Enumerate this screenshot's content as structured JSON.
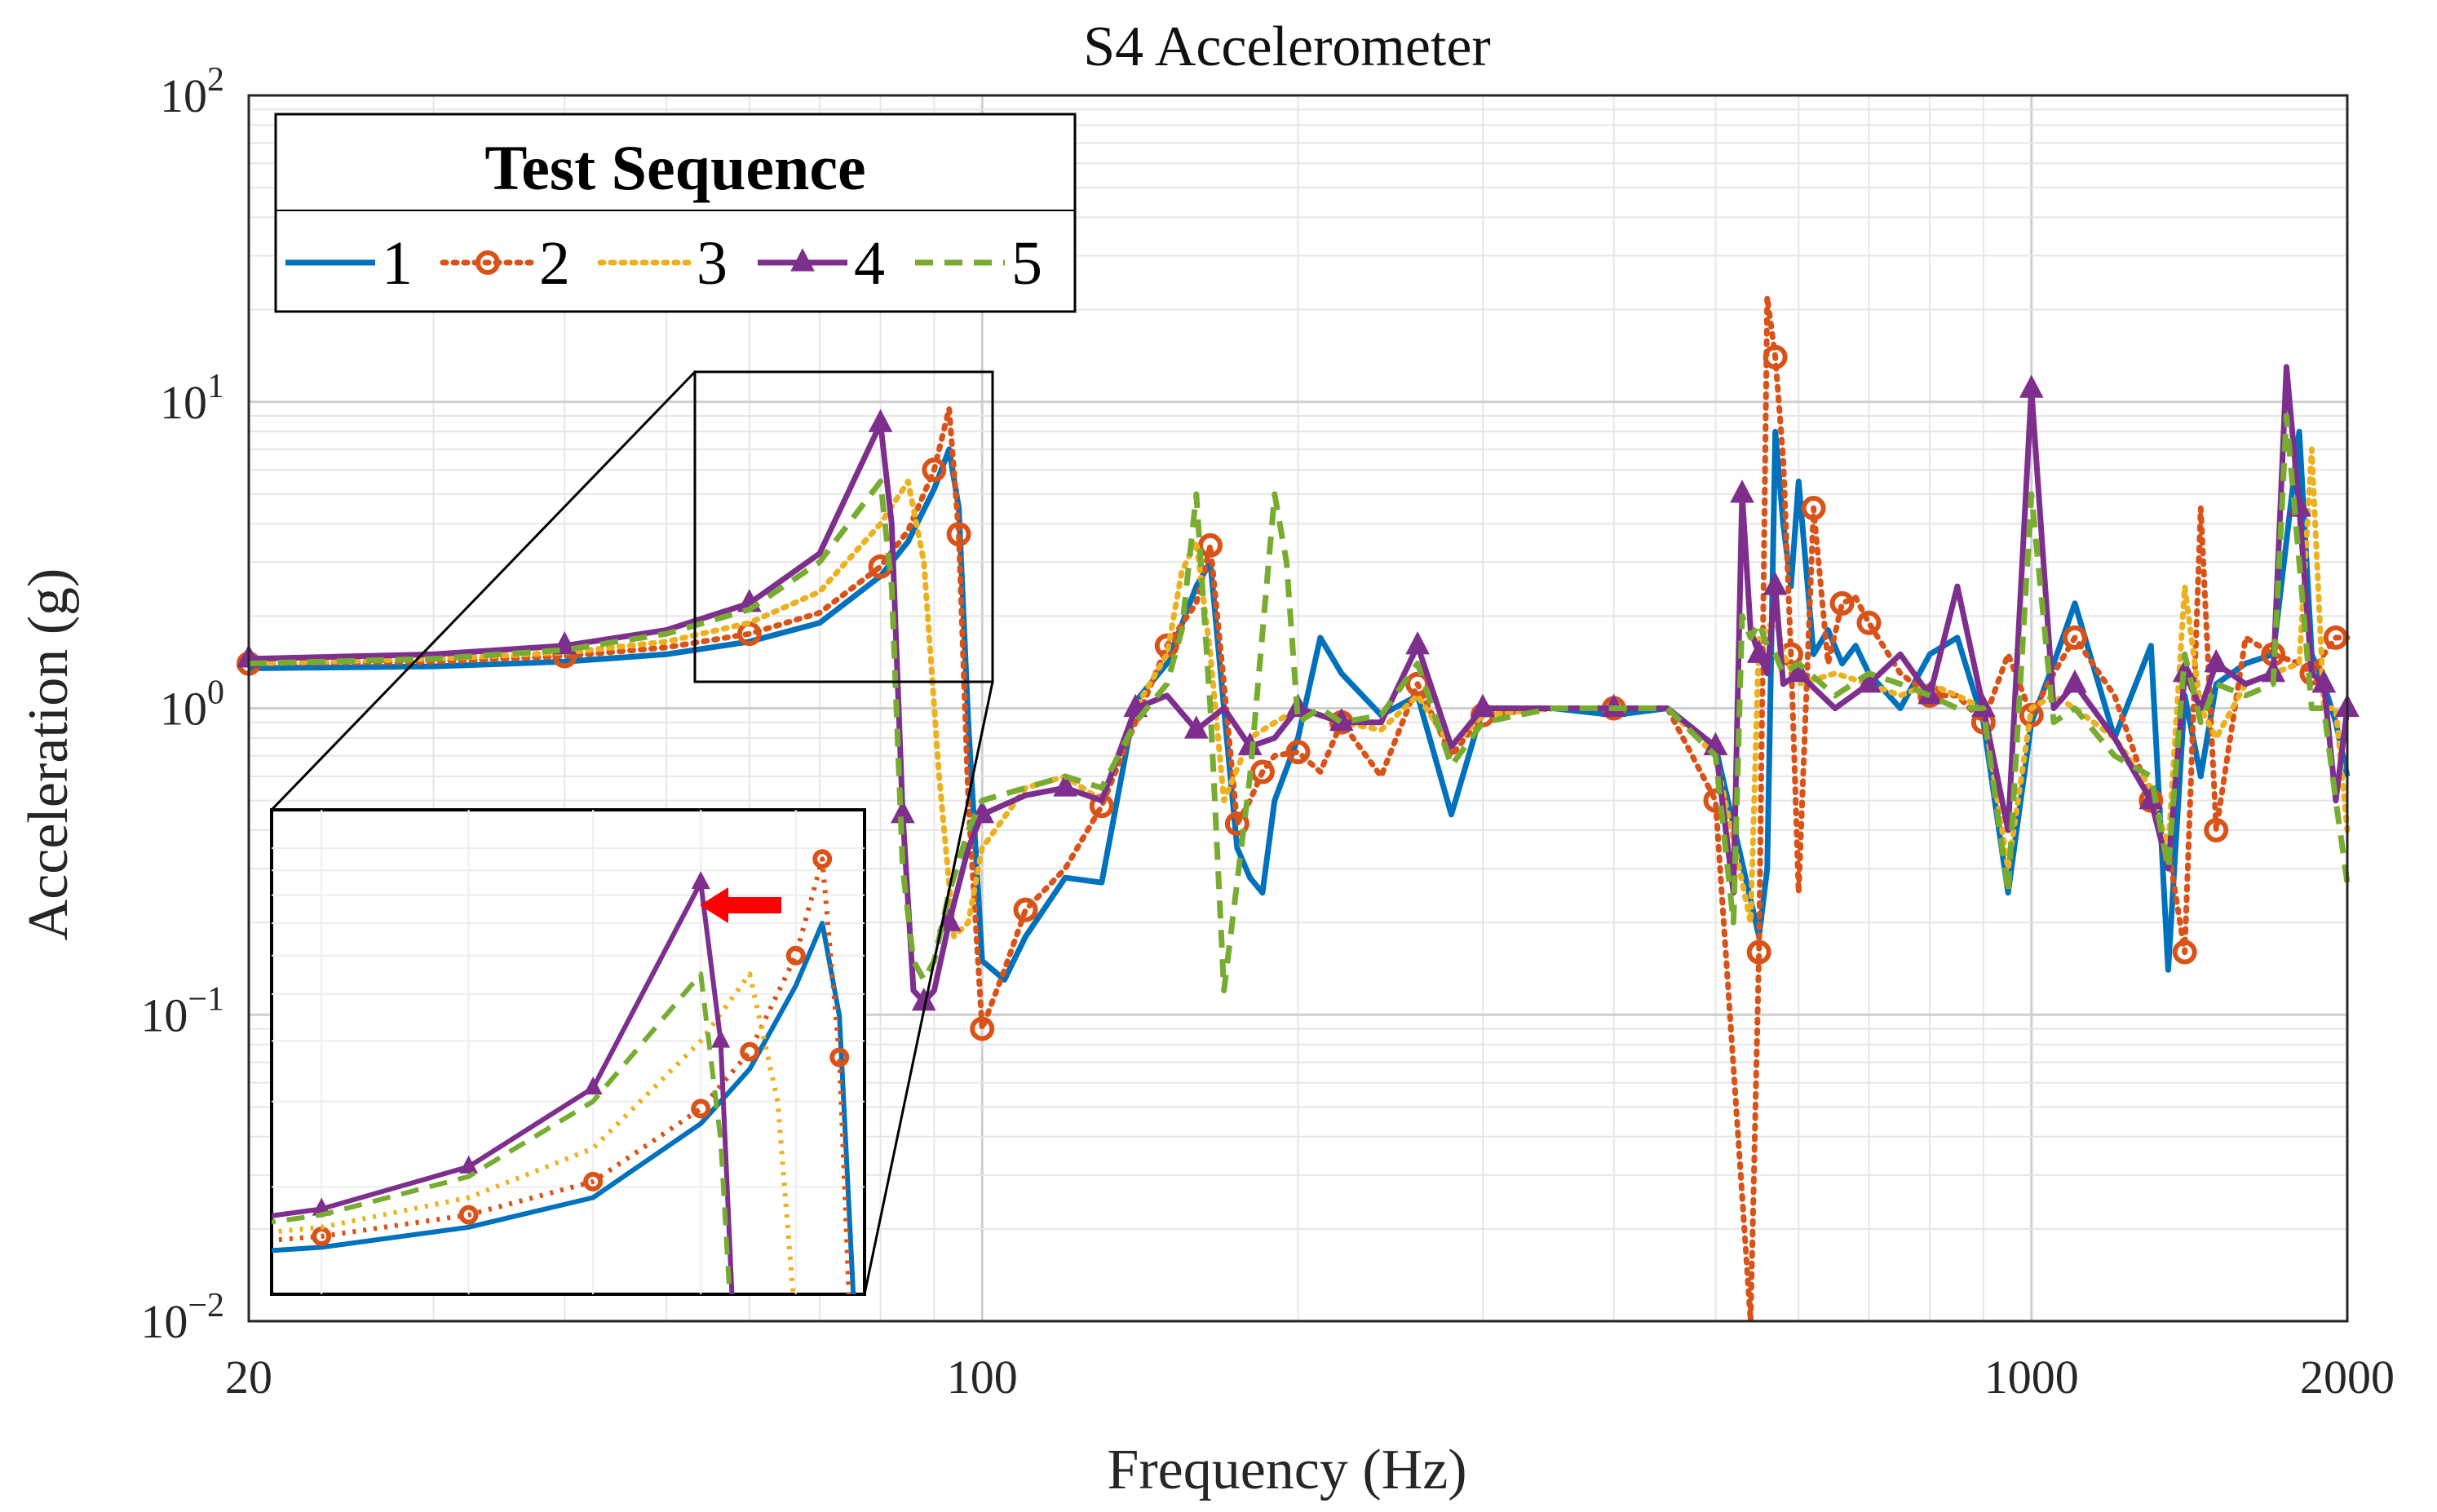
{
  "chart_data": {
    "type": "line",
    "title": "S4 Accelerometer",
    "xlabel": "Frequency (Hz)",
    "ylabel": "Acceleration (g)",
    "xscale": "log",
    "yscale": "log",
    "xlim": [
      20,
      2000
    ],
    "ylim": [
      0.01,
      100
    ],
    "grid": true,
    "xticks": [
      {
        "value": 20,
        "label": "20"
      },
      {
        "value": 100,
        "label": "100"
      },
      {
        "value": 1000,
        "label": "1000"
      },
      {
        "value": 2000,
        "label": "2000"
      }
    ],
    "yticks": [
      {
        "value": 0.01,
        "base": "10",
        "exp": "−2"
      },
      {
        "value": 0.1,
        "base": "10",
        "exp": "−1"
      },
      {
        "value": 1,
        "base": "10",
        "exp": "0"
      },
      {
        "value": 10,
        "base": "10",
        "exp": "1"
      },
      {
        "value": 100,
        "base": "10",
        "exp": "2"
      }
    ],
    "legend": {
      "title": "Test Sequence",
      "position": "top-left"
    },
    "inset": {
      "x_range": [
        47,
        98
      ],
      "y_range": [
        1.2,
        12
      ],
      "position": "lower-left",
      "annotation": "red arrow pointing left toward the shifted peak"
    },
    "series": [
      {
        "name": "1",
        "color": "#0072BD",
        "style": "solid",
        "marker": "none",
        "x": [
          20,
          30,
          40,
          50,
          60,
          70,
          80,
          85,
          90,
          93,
          95,
          97,
          100,
          105,
          110,
          120,
          130,
          140,
          150,
          160,
          165,
          170,
          175,
          180,
          185,
          190,
          200,
          210,
          220,
          240,
          260,
          280,
          300,
          350,
          400,
          450,
          500,
          550,
          560,
          570,
          580,
          590,
          600,
          620,
          640,
          660,
          680,
          700,
          750,
          800,
          850,
          900,
          950,
          1000,
          1050,
          1100,
          1200,
          1300,
          1350,
          1400,
          1450,
          1500,
          1600,
          1700,
          1800,
          1850,
          1900,
          1950,
          2000
        ],
        "y": [
          1.35,
          1.37,
          1.42,
          1.5,
          1.65,
          1.9,
          2.7,
          3.5,
          5.2,
          7.0,
          4.5,
          0.9,
          0.15,
          0.13,
          0.18,
          0.28,
          0.27,
          1.05,
          1.4,
          2.5,
          3.0,
          1.0,
          0.35,
          0.28,
          0.25,
          0.5,
          0.8,
          1.7,
          1.3,
          0.95,
          1.1,
          0.45,
          1.0,
          1.0,
          0.95,
          1.0,
          0.75,
          0.18,
          0.3,
          8.0,
          4.0,
          2.5,
          5.5,
          1.5,
          1.8,
          1.4,
          1.6,
          1.3,
          1.0,
          1.5,
          1.7,
          0.9,
          0.25,
          0.9,
          1.4,
          2.2,
          0.8,
          1.6,
          0.14,
          1.1,
          0.6,
          1.2,
          1.4,
          1.5,
          8.0,
          1.5,
          1.2,
          0.9,
          0.6
        ]
      },
      {
        "name": "2",
        "color": "#D95319",
        "style": "dotted",
        "marker": "circle",
        "x": [
          20,
          30,
          40,
          50,
          60,
          70,
          80,
          85,
          90,
          93,
          95,
          97,
          100,
          105,
          110,
          120,
          130,
          140,
          150,
          160,
          165,
          170,
          175,
          180,
          185,
          190,
          200,
          210,
          220,
          240,
          260,
          280,
          300,
          350,
          400,
          450,
          500,
          540,
          550,
          560,
          570,
          580,
          590,
          600,
          620,
          640,
          660,
          680,
          700,
          750,
          800,
          850,
          900,
          950,
          1000,
          1050,
          1100,
          1200,
          1300,
          1350,
          1400,
          1450,
          1500,
          1600,
          1700,
          1800,
          1850,
          1900,
          1950,
          2000
        ],
        "y": [
          1.4,
          1.42,
          1.48,
          1.58,
          1.75,
          2.05,
          2.9,
          3.8,
          6.0,
          9.5,
          3.7,
          0.5,
          0.09,
          0.14,
          0.22,
          0.3,
          0.48,
          0.9,
          1.6,
          2.2,
          3.4,
          1.2,
          0.42,
          0.5,
          0.62,
          0.7,
          0.72,
          0.62,
          0.9,
          0.6,
          1.2,
          0.7,
          0.95,
          1.0,
          1.0,
          1.0,
          0.5,
          0.005,
          0.16,
          22.0,
          14.0,
          6.5,
          1.5,
          0.25,
          4.5,
          1.4,
          2.2,
          2.3,
          1.9,
          1.3,
          1.1,
          1.1,
          0.9,
          1.5,
          0.95,
          1.3,
          1.7,
          1.1,
          0.5,
          0.35,
          0.16,
          4.5,
          0.4,
          1.7,
          1.5,
          1.4,
          1.3,
          1.5,
          1.7,
          1.7
        ]
      },
      {
        "name": "3",
        "color": "#EDB120",
        "style": "dotted",
        "marker": "none",
        "x": [
          20,
          30,
          40,
          50,
          60,
          70,
          80,
          85,
          88,
          91,
          94,
          97,
          100,
          110,
          120,
          130,
          140,
          150,
          155,
          160,
          165,
          170,
          180,
          200,
          220,
          240,
          260,
          280,
          300,
          350,
          400,
          450,
          500,
          540,
          550,
          560,
          570,
          580,
          600,
          650,
          700,
          750,
          800,
          850,
          900,
          950,
          1000,
          1050,
          1100,
          1200,
          1300,
          1350,
          1400,
          1450,
          1500,
          1600,
          1700,
          1800,
          1850,
          1900,
          1950,
          2000
        ],
        "y": [
          1.4,
          1.45,
          1.52,
          1.65,
          1.9,
          2.4,
          4.0,
          5.5,
          3.0,
          0.6,
          0.18,
          0.2,
          0.35,
          0.55,
          0.6,
          0.5,
          1.0,
          1.5,
          2.8,
          3.5,
          1.5,
          0.5,
          0.8,
          1.0,
          0.9,
          0.85,
          1.1,
          0.75,
          0.95,
          1.0,
          1.0,
          1.0,
          0.7,
          0.2,
          1.7,
          1.8,
          2.0,
          1.5,
          1.2,
          1.3,
          1.2,
          1.1,
          1.2,
          1.1,
          1.0,
          0.3,
          1.0,
          1.1,
          1.0,
          0.8,
          0.55,
          0.35,
          2.5,
          1.0,
          0.8,
          1.2,
          1.3,
          1.4,
          7.0,
          1.0,
          1.0,
          0.4
        ]
      },
      {
        "name": "4",
        "color": "#7E2F8E",
        "style": "solid",
        "marker": "triangle",
        "x": [
          20,
          30,
          40,
          50,
          60,
          70,
          80,
          82,
          84,
          86,
          88,
          90,
          93,
          97,
          100,
          110,
          120,
          130,
          140,
          150,
          160,
          170,
          180,
          190,
          200,
          210,
          220,
          240,
          260,
          280,
          300,
          350,
          400,
          450,
          500,
          520,
          530,
          540,
          550,
          560,
          570,
          580,
          600,
          650,
          700,
          750,
          800,
          850,
          900,
          950,
          1000,
          1050,
          1100,
          1200,
          1300,
          1350,
          1400,
          1450,
          1500,
          1600,
          1700,
          1750,
          1800,
          1850,
          1900,
          1950,
          2000
        ],
        "y": [
          1.45,
          1.5,
          1.6,
          1.8,
          2.2,
          3.2,
          8.5,
          4.0,
          0.45,
          0.12,
          0.11,
          0.12,
          0.2,
          0.35,
          0.45,
          0.52,
          0.55,
          0.5,
          1.0,
          1.1,
          0.85,
          1.0,
          0.75,
          0.8,
          1.0,
          0.95,
          0.9,
          0.9,
          1.6,
          0.75,
          1.0,
          1.0,
          1.0,
          1.0,
          0.75,
          0.25,
          5.0,
          1.8,
          1.5,
          1.3,
          2.5,
          1.2,
          1.3,
          1.0,
          1.2,
          1.5,
          1.1,
          2.5,
          1.0,
          0.4,
          11.0,
          1.0,
          1.2,
          0.8,
          0.5,
          0.3,
          1.3,
          1.0,
          1.4,
          1.2,
          1.3,
          13.0,
          4.5,
          1.3,
          1.2,
          0.5,
          1.0
        ]
      },
      {
        "name": "5",
        "color": "#77AC30",
        "style": "dashed",
        "marker": "none",
        "x": [
          20,
          30,
          40,
          50,
          60,
          70,
          80,
          82,
          84,
          86,
          88,
          90,
          93,
          97,
          100,
          110,
          120,
          130,
          140,
          150,
          155,
          160,
          165,
          170,
          180,
          190,
          195,
          200,
          210,
          220,
          240,
          260,
          280,
          300,
          350,
          400,
          450,
          500,
          520,
          530,
          540,
          550,
          560,
          570,
          580,
          600,
          650,
          700,
          750,
          800,
          850,
          900,
          950,
          1000,
          1050,
          1100,
          1200,
          1300,
          1350,
          1400,
          1450,
          1500,
          1600,
          1700,
          1750,
          1800,
          1850,
          1900,
          1950,
          2000
        ],
        "y": [
          1.4,
          1.45,
          1.55,
          1.75,
          2.1,
          3.0,
          5.5,
          2.5,
          0.3,
          0.15,
          0.13,
          0.15,
          0.25,
          0.4,
          0.5,
          0.55,
          0.6,
          0.55,
          0.9,
          1.2,
          1.8,
          5.0,
          1.0,
          0.12,
          0.6,
          5.0,
          3.0,
          0.9,
          1.0,
          0.9,
          0.95,
          1.4,
          0.65,
          0.9,
          1.0,
          1.0,
          1.0,
          0.7,
          0.2,
          2.0,
          1.7,
          1.9,
          1.6,
          1.5,
          1.3,
          1.4,
          1.1,
          1.3,
          1.2,
          1.1,
          1.0,
          1.0,
          0.25,
          5.0,
          0.9,
          1.0,
          0.7,
          0.6,
          0.3,
          1.5,
          0.9,
          1.2,
          1.1,
          1.2,
          9.0,
          3.0,
          1.0,
          1.0,
          0.5,
          0.27
        ]
      }
    ]
  }
}
